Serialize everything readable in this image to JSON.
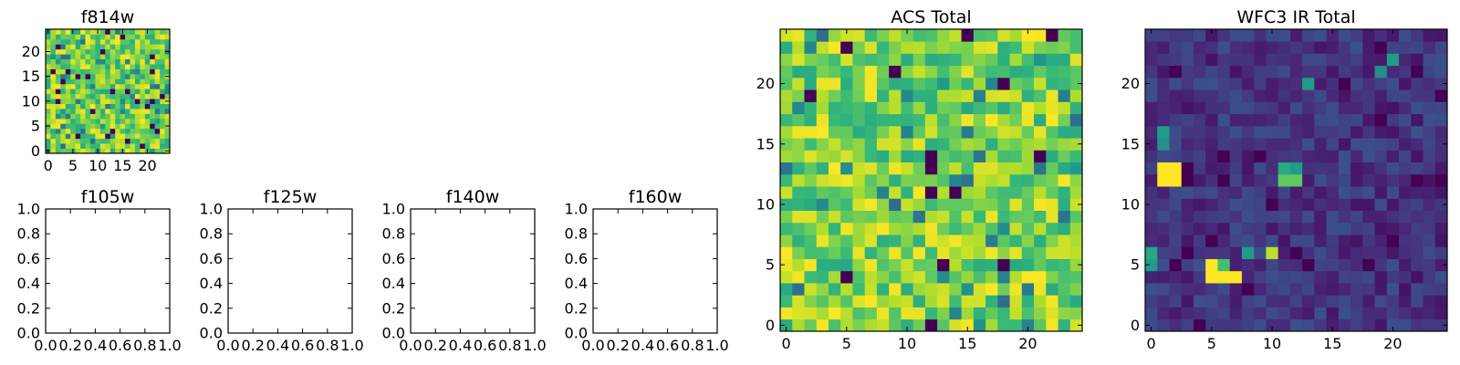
{
  "chart_data": [
    {
      "type": "heatmap",
      "title": "f814w",
      "grid_size": 25,
      "colormap": "viridis",
      "xticks": [
        "0",
        "5",
        "10",
        "15",
        "20"
      ],
      "yticks": [
        "0",
        "5",
        "10",
        "15",
        "20"
      ],
      "xlim": [
        -0.5,
        24.5
      ],
      "ylim": [
        -0.5,
        24.5
      ],
      "value_range": [
        0,
        1
      ],
      "pixel_value_note": "random noise image; seeded values approximate the rendered pixels",
      "value_seed": 814,
      "value_model": "bright"
    },
    {
      "type": "heatmap",
      "title": "f105w",
      "empty": true,
      "xticks": [
        "0.0",
        "0.2",
        "0.4",
        "0.6",
        "0.8",
        "1.0"
      ],
      "yticks": [
        "0.0",
        "0.2",
        "0.4",
        "0.6",
        "0.8",
        "1.0"
      ],
      "xlim": [
        0,
        1
      ],
      "ylim": [
        0,
        1
      ]
    },
    {
      "type": "heatmap",
      "title": "f125w",
      "empty": true,
      "xticks": [
        "0.0",
        "0.2",
        "0.4",
        "0.6",
        "0.8",
        "1.0"
      ],
      "yticks": [
        "0.0",
        "0.2",
        "0.4",
        "0.6",
        "0.8",
        "1.0"
      ],
      "xlim": [
        0,
        1
      ],
      "ylim": [
        0,
        1
      ]
    },
    {
      "type": "heatmap",
      "title": "f140w",
      "empty": true,
      "xticks": [
        "0.0",
        "0.2",
        "0.4",
        "0.6",
        "0.8",
        "1.0"
      ],
      "yticks": [
        "0.0",
        "0.2",
        "0.4",
        "0.6",
        "0.8",
        "1.0"
      ],
      "xlim": [
        0,
        1
      ],
      "ylim": [
        0,
        1
      ]
    },
    {
      "type": "heatmap",
      "title": "f160w",
      "empty": true,
      "xticks": [
        "0.0",
        "0.2",
        "0.4",
        "0.6",
        "0.8",
        "1.0"
      ],
      "yticks": [
        "0.0",
        "0.2",
        "0.4",
        "0.6",
        "0.8",
        "1.0"
      ],
      "xlim": [
        0,
        1
      ],
      "ylim": [
        0,
        1
      ]
    },
    {
      "type": "heatmap",
      "title": "ACS Total",
      "grid_size": 25,
      "colormap": "viridis",
      "xticks": [
        "0",
        "5",
        "10",
        "15",
        "20"
      ],
      "yticks": [
        "0",
        "5",
        "10",
        "15",
        "20"
      ],
      "xlim": [
        -0.5,
        24.5
      ],
      "ylim": [
        -0.5,
        24.5
      ],
      "value_range": [
        0,
        1
      ],
      "value_seed": 4242,
      "value_model": "bright"
    },
    {
      "type": "heatmap",
      "title": "WFC3 IR Total",
      "grid_size": 25,
      "colormap": "viridis",
      "xticks": [
        "0",
        "5",
        "10",
        "15",
        "20"
      ],
      "yticks": [
        "0",
        "5",
        "10",
        "15",
        "20"
      ],
      "xlim": [
        -0.5,
        24.5
      ],
      "ylim": [
        -0.5,
        24.5
      ],
      "value_range": [
        0,
        1
      ],
      "value_seed": 3160,
      "value_model": "dark",
      "bright_cells": [
        {
          "x": 1,
          "y": 12,
          "value": 1.0
        },
        {
          "x": 2,
          "y": 12,
          "value": 1.0
        },
        {
          "x": 1,
          "y": 13,
          "value": 1.0
        },
        {
          "x": 2,
          "y": 13,
          "value": 1.0
        },
        {
          "x": 5,
          "y": 4,
          "value": 1.0
        },
        {
          "x": 6,
          "y": 4,
          "value": 1.0
        },
        {
          "x": 7,
          "y": 4,
          "value": 1.0
        },
        {
          "x": 5,
          "y": 5,
          "value": 1.0
        },
        {
          "x": 6,
          "y": 5,
          "value": 0.7
        },
        {
          "x": 10,
          "y": 6,
          "value": 0.9
        },
        {
          "x": 11,
          "y": 12,
          "value": 0.75
        },
        {
          "x": 12,
          "y": 12,
          "value": 0.75
        },
        {
          "x": 11,
          "y": 13,
          "value": 0.6
        },
        {
          "x": 12,
          "y": 13,
          "value": 0.55
        },
        {
          "x": 0,
          "y": 5,
          "value": 0.55
        },
        {
          "x": 0,
          "y": 6,
          "value": 0.6
        },
        {
          "x": 1,
          "y": 15,
          "value": 0.5
        },
        {
          "x": 1,
          "y": 16,
          "value": 0.55
        },
        {
          "x": 8,
          "y": 6,
          "value": 0.55
        },
        {
          "x": 13,
          "y": 20,
          "value": 0.55
        },
        {
          "x": 19,
          "y": 21,
          "value": 0.5
        },
        {
          "x": 20,
          "y": 22,
          "value": 0.55
        }
      ]
    }
  ]
}
